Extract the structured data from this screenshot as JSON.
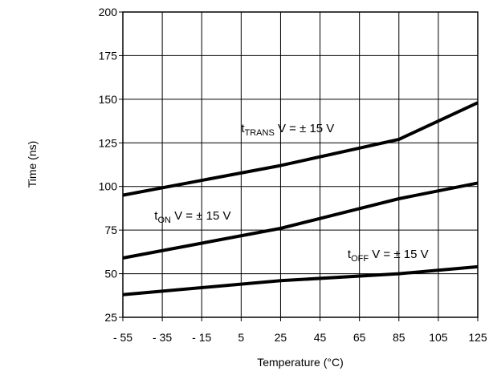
{
  "chart_data": {
    "type": "line",
    "title": "",
    "xlabel": "Temperature (°C)",
    "ylabel": "Time (ns)",
    "xlim": [
      -55,
      125
    ],
    "ylim": [
      25,
      200
    ],
    "x_ticks": [
      -55,
      -35,
      -15,
      5,
      25,
      45,
      65,
      85,
      105,
      125
    ],
    "x_tick_labels": [
      "- 55",
      "- 35",
      "- 15",
      "5",
      "25",
      "45",
      "65",
      "85",
      "105",
      "125"
    ],
    "y_ticks": [
      25,
      50,
      75,
      100,
      125,
      150,
      175,
      200
    ],
    "y_tick_labels": [
      "25",
      "50",
      "75",
      "100",
      "125",
      "150",
      "175",
      "200"
    ],
    "grid": true,
    "legend": "none",
    "series": [
      {
        "label_main": "t",
        "label_sub": "TRANS",
        "label_rest": " V = ±  15 V",
        "color": "#000000",
        "points": [
          [
            -55,
            95
          ],
          [
            25,
            112
          ],
          [
            85,
            127
          ],
          [
            125,
            148
          ]
        ],
        "label_at": [
          5,
          131
        ]
      },
      {
        "label_main": "t",
        "label_sub": "ON",
        "label_rest": " V = ±  15 V",
        "color": "#000000",
        "points": [
          [
            -55,
            59
          ],
          [
            25,
            76
          ],
          [
            85,
            93
          ],
          [
            125,
            102
          ]
        ],
        "label_at": [
          -39,
          81
        ]
      },
      {
        "label_main": "t",
        "label_sub": "OFF",
        "label_rest": " V = ±  15 V",
        "color": "#000000",
        "points": [
          [
            -55,
            38
          ],
          [
            25,
            46
          ],
          [
            85,
            50
          ],
          [
            125,
            54
          ]
        ],
        "label_at": [
          59,
          59
        ]
      }
    ]
  }
}
